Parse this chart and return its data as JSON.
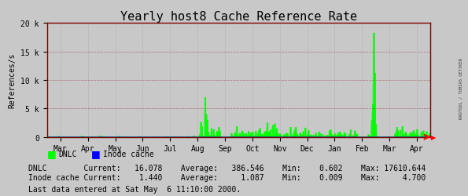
{
  "title": "Yearly host8 Cache Reference Rate",
  "ylabel": "References/s",
  "background_color": "#c8c8c8",
  "plot_bg_color": "#c8c8c8",
  "grid_color": "#a0a0a0",
  "border_color": "#800000",
  "ylim": [
    0,
    20000
  ],
  "yticks": [
    0,
    5000,
    10000,
    15000,
    20000
  ],
  "ytick_labels": [
    "0",
    "5 k",
    "10 k",
    "15 k",
    "20 k"
  ],
  "x_months": [
    "Mar",
    "Apr",
    "May",
    "Jun",
    "Jul",
    "Aug",
    "Sep",
    "Oct",
    "Nov",
    "Dec",
    "Jan",
    "Feb",
    "Mar",
    "Apr"
  ],
  "dnlc_color": "#00ff00",
  "inode_color": "#0000ff",
  "sidebar_text": "RRDTOOL / TOBIAS OETIKER",
  "legend_dnlc": "DNLC",
  "legend_inode": "Inode cache",
  "stats_dnlc": "DNLC        Current:   16.078    Average:   386.546    Min:    0.602    Max: 17610.644",
  "stats_inode": "Inode cache Current:    1.440    Average:     1.087    Min:    0.009    Max:     4.700",
  "footer": "Last data entered at Sat May  6 11:10:00 2000.",
  "title_fontsize": 11,
  "label_fontsize": 7,
  "stats_fontsize": 7
}
